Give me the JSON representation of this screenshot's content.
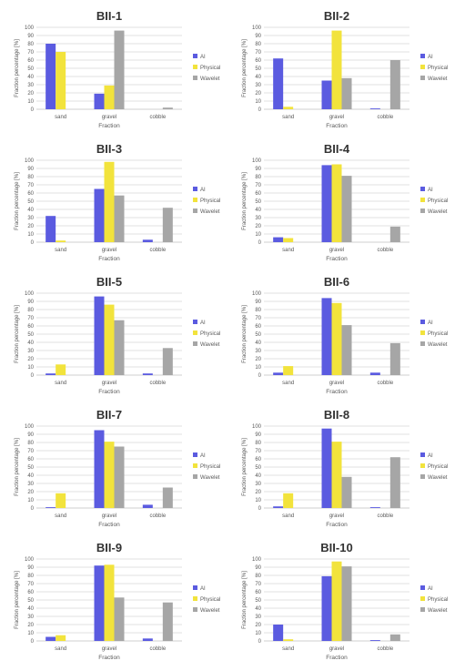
{
  "legend_labels": [
    "AI",
    "Physical",
    "Wavelet"
  ],
  "colors": {
    "AI": "#5B5BE0",
    "Physical": "#F2E33C",
    "Wavelet": "#A6A6A6",
    "grid": "#D9D9D9",
    "axis": "#BFBFBF",
    "text": "#595959",
    "title": "#333333"
  },
  "chart_data": [
    {
      "type": "bar",
      "title": "BII-1",
      "xlabel": "Fraction",
      "ylabel": "Fraction percentage [%]",
      "categories": [
        "sand",
        "gravel",
        "cobble"
      ],
      "ylim": [
        0,
        100
      ],
      "yticks": [
        0,
        10,
        20,
        30,
        40,
        50,
        60,
        70,
        80,
        90,
        100
      ],
      "grid": true,
      "legend": "right",
      "series": [
        {
          "name": "AI",
          "values": [
            80,
            19,
            0
          ]
        },
        {
          "name": "Physical",
          "values": [
            70,
            29,
            0
          ]
        },
        {
          "name": "Wavelet",
          "values": [
            0,
            96,
            2
          ]
        }
      ]
    },
    {
      "type": "bar",
      "title": "BII-2",
      "xlabel": "Fraction",
      "ylabel": "Fraction percentage [%]",
      "categories": [
        "sand",
        "gravel",
        "cobble"
      ],
      "ylim": [
        0,
        100
      ],
      "yticks": [
        0,
        10,
        20,
        30,
        40,
        50,
        60,
        70,
        80,
        90,
        100
      ],
      "grid": true,
      "legend": "right",
      "series": [
        {
          "name": "AI",
          "values": [
            62,
            35,
            1
          ]
        },
        {
          "name": "Physical",
          "values": [
            3,
            96,
            0
          ]
        },
        {
          "name": "Wavelet",
          "values": [
            0,
            38,
            60
          ]
        }
      ]
    },
    {
      "type": "bar",
      "title": "BII-3",
      "xlabel": "Fraction",
      "ylabel": "Fraction percentage [%]",
      "categories": [
        "sand",
        "gravel",
        "cobble"
      ],
      "ylim": [
        0,
        100
      ],
      "yticks": [
        0,
        10,
        20,
        30,
        40,
        50,
        60,
        70,
        80,
        90,
        100
      ],
      "grid": true,
      "legend": "right",
      "series": [
        {
          "name": "AI",
          "values": [
            32,
            65,
            3
          ]
        },
        {
          "name": "Physical",
          "values": [
            2,
            98,
            0
          ]
        },
        {
          "name": "Wavelet",
          "values": [
            0,
            57,
            42
          ]
        }
      ]
    },
    {
      "type": "bar",
      "title": "BII-4",
      "xlabel": "Fraction",
      "ylabel": "Fraction percentage [%]",
      "categories": [
        "sand",
        "gravel",
        "cobble"
      ],
      "ylim": [
        0,
        100
      ],
      "yticks": [
        0,
        10,
        20,
        30,
        40,
        50,
        60,
        70,
        80,
        90,
        100
      ],
      "grid": true,
      "legend": "right",
      "series": [
        {
          "name": "AI",
          "values": [
            6,
            94,
            0
          ]
        },
        {
          "name": "Physical",
          "values": [
            5,
            95,
            0
          ]
        },
        {
          "name": "Wavelet",
          "values": [
            0,
            81,
            19
          ]
        }
      ]
    },
    {
      "type": "bar",
      "title": "BII-5",
      "xlabel": "Fraction",
      "ylabel": "Fraction percentage [%]",
      "categories": [
        "sand",
        "gravel",
        "cobble"
      ],
      "ylim": [
        0,
        100
      ],
      "yticks": [
        0,
        10,
        20,
        30,
        40,
        50,
        60,
        70,
        80,
        90,
        100
      ],
      "grid": true,
      "legend": "right",
      "series": [
        {
          "name": "AI",
          "values": [
            2,
            96,
            2
          ]
        },
        {
          "name": "Physical",
          "values": [
            13,
            86,
            0
          ]
        },
        {
          "name": "Wavelet",
          "values": [
            0,
            67,
            33
          ]
        }
      ]
    },
    {
      "type": "bar",
      "title": "BII-6",
      "xlabel": "Fraction",
      "ylabel": "Fraction percentage [%]",
      "categories": [
        "sand",
        "gravel",
        "cobble"
      ],
      "ylim": [
        0,
        100
      ],
      "yticks": [
        0,
        10,
        20,
        30,
        40,
        50,
        60,
        70,
        80,
        90,
        100
      ],
      "grid": true,
      "legend": "right",
      "series": [
        {
          "name": "AI",
          "values": [
            3,
            94,
            3
          ]
        },
        {
          "name": "Physical",
          "values": [
            11,
            88,
            0
          ]
        },
        {
          "name": "Wavelet",
          "values": [
            0,
            61,
            39
          ]
        }
      ]
    },
    {
      "type": "bar",
      "title": "BII-7",
      "xlabel": "Fraction",
      "ylabel": "Fraction percentage [%]",
      "categories": [
        "sand",
        "gravel",
        "cobble"
      ],
      "ylim": [
        0,
        100
      ],
      "yticks": [
        0,
        10,
        20,
        30,
        40,
        50,
        60,
        70,
        80,
        90,
        100
      ],
      "grid": true,
      "legend": "right",
      "series": [
        {
          "name": "AI",
          "values": [
            1,
            95,
            4
          ]
        },
        {
          "name": "Physical",
          "values": [
            18,
            81,
            0
          ]
        },
        {
          "name": "Wavelet",
          "values": [
            0,
            75,
            25
          ]
        }
      ]
    },
    {
      "type": "bar",
      "title": "BII-8",
      "xlabel": "Fraction",
      "ylabel": "Fraction percentage [%]",
      "categories": [
        "sand",
        "gravel",
        "cobble"
      ],
      "ylim": [
        0,
        100
      ],
      "yticks": [
        0,
        10,
        20,
        30,
        40,
        50,
        60,
        70,
        80,
        90,
        100
      ],
      "grid": true,
      "legend": "right",
      "series": [
        {
          "name": "AI",
          "values": [
            2,
            97,
            1
          ]
        },
        {
          "name": "Physical",
          "values": [
            18,
            81,
            0
          ]
        },
        {
          "name": "Wavelet",
          "values": [
            0,
            38,
            62
          ]
        }
      ]
    },
    {
      "type": "bar",
      "title": "BII-9",
      "xlabel": "Fraction",
      "ylabel": "Fraction percentage [%]",
      "categories": [
        "sand",
        "gravel",
        "cobble"
      ],
      "ylim": [
        0,
        100
      ],
      "yticks": [
        0,
        10,
        20,
        30,
        40,
        50,
        60,
        70,
        80,
        90,
        100
      ],
      "grid": true,
      "legend": "right",
      "series": [
        {
          "name": "AI",
          "values": [
            5,
            92,
            3
          ]
        },
        {
          "name": "Physical",
          "values": [
            7,
            93,
            0
          ]
        },
        {
          "name": "Wavelet",
          "values": [
            0,
            53,
            47
          ]
        }
      ]
    },
    {
      "type": "bar",
      "title": "BII-10",
      "xlabel": "Fraction",
      "ylabel": "Fraction percentage [%]",
      "categories": [
        "sand",
        "gravel",
        "cobble"
      ],
      "ylim": [
        0,
        100
      ],
      "yticks": [
        0,
        10,
        20,
        30,
        40,
        50,
        60,
        70,
        80,
        90,
        100
      ],
      "grid": true,
      "legend": "right",
      "series": [
        {
          "name": "AI",
          "values": [
            20,
            79,
            1
          ]
        },
        {
          "name": "Physical",
          "values": [
            2,
            97,
            0
          ]
        },
        {
          "name": "Wavelet",
          "values": [
            0,
            91,
            8
          ]
        }
      ]
    }
  ]
}
